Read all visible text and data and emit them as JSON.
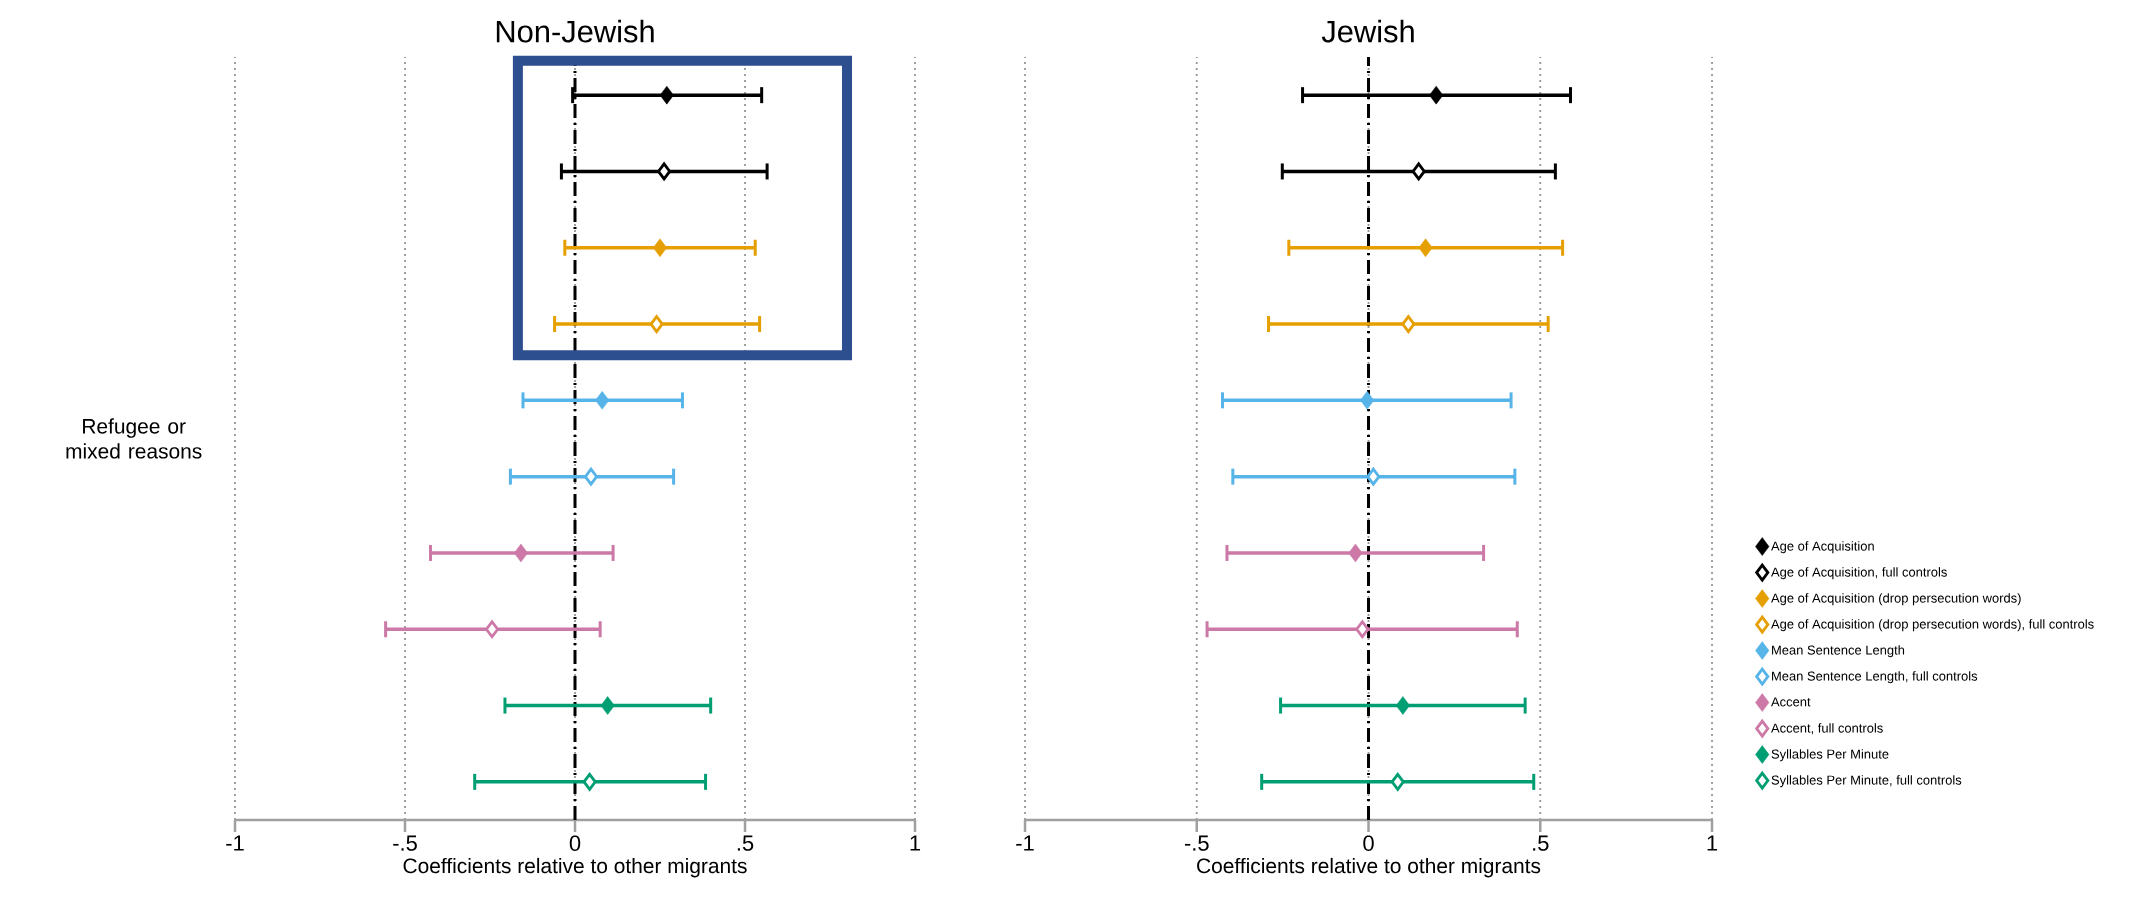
{
  "chart_data": [
    {
      "type": "scatter",
      "orientation": "horizontal",
      "title": "Non-Jewish",
      "xlabel": "Coefficients relative to other migrants",
      "ylabel": "Refugee or mixed reasons",
      "categories": [
        null,
        null,
        null,
        null,
        null,
        null,
        null,
        null,
        null,
        null
      ],
      "xlim": [
        -1,
        1
      ],
      "xticks": [
        {
          "value": -1,
          "label": "-1"
        },
        {
          "value": -0.5,
          "label": "-.5"
        },
        0,
        {
          "value": 0.5,
          "label": ".5"
        },
        1
      ],
      "grid": "x",
      "legend": false,
      "marker": "diamond",
      "ref_lines": [
        {
          "axis": "x",
          "value": 0,
          "line_style": "dashed",
          "color": "#000000"
        }
      ],
      "series": [
        {
          "color": "#000000",
          "values": [
            0.27,
            null,
            null,
            null,
            null,
            null,
            null,
            null,
            null,
            null
          ],
          "errors": [
            [
              -0.007,
              0.549
            ],
            null,
            null,
            null,
            null,
            null,
            null,
            null,
            null,
            null
          ]
        },
        {
          "color": "#000000",
          "values": [
            null,
            0.262,
            null,
            null,
            null,
            null,
            null,
            null,
            null,
            null
          ],
          "errors": [
            null,
            [
              -0.04,
              0.565
            ],
            null,
            null,
            null,
            null,
            null,
            null,
            null,
            null
          ]
        },
        {
          "color": "#e69f00",
          "values": [
            null,
            null,
            0.25,
            null,
            null,
            null,
            null,
            null,
            null,
            null
          ],
          "errors": [
            null,
            null,
            [
              -0.03,
              0.53
            ],
            null,
            null,
            null,
            null,
            null,
            null,
            null
          ]
        },
        {
          "color": "#e69f00",
          "values": [
            null,
            null,
            null,
            0.24,
            null,
            null,
            null,
            null,
            null,
            null
          ],
          "errors": [
            null,
            null,
            null,
            [
              -0.06,
              0.543
            ],
            null,
            null,
            null,
            null,
            null,
            null
          ]
        },
        {
          "color": "#56b4e9",
          "values": [
            null,
            null,
            null,
            null,
            0.08,
            null,
            null,
            null,
            null,
            null
          ],
          "errors": [
            null,
            null,
            null,
            null,
            [
              -0.153,
              0.316
            ],
            null,
            null,
            null,
            null,
            null
          ]
        },
        {
          "color": "#56b4e9",
          "values": [
            null,
            null,
            null,
            null,
            null,
            0.047,
            null,
            null,
            null,
            null
          ],
          "errors": [
            null,
            null,
            null,
            null,
            null,
            [
              -0.19,
              0.29
            ],
            null,
            null,
            null,
            null
          ]
        },
        {
          "color": "#cc79a7",
          "values": [
            null,
            null,
            null,
            null,
            null,
            null,
            -0.159,
            null,
            null,
            null
          ],
          "errors": [
            null,
            null,
            null,
            null,
            null,
            null,
            [
              -0.425,
              0.112
            ],
            null,
            null,
            null
          ]
        },
        {
          "color": "#cc79a7",
          "values": [
            null,
            null,
            null,
            null,
            null,
            null,
            null,
            -0.244,
            null,
            null
          ],
          "errors": [
            null,
            null,
            null,
            null,
            null,
            null,
            null,
            [
              -0.557,
              0.074
            ],
            null,
            null
          ]
        },
        {
          "color": "#009e73",
          "values": [
            null,
            null,
            null,
            null,
            null,
            null,
            null,
            null,
            0.096,
            null
          ],
          "errors": [
            null,
            null,
            null,
            null,
            null,
            null,
            null,
            null,
            [
              -0.206,
              0.399
            ],
            null
          ]
        },
        {
          "color": "#009e73",
          "values": [
            null,
            null,
            null,
            null,
            null,
            null,
            null,
            null,
            null,
            0.043
          ],
          "errors": [
            null,
            null,
            null,
            null,
            null,
            null,
            null,
            null,
            null,
            [
              -0.295,
              0.384
            ]
          ]
        }
      ]
    },
    {
      "type": "scatter",
      "orientation": "horizontal",
      "title": "Jewish",
      "xlabel": "Coefficients relative to other migrants",
      "tick_labels": "x",
      "categories": [
        null,
        null,
        null,
        null,
        null,
        null,
        null,
        null,
        null,
        null
      ],
      "xlim": [
        -1,
        1
      ],
      "xticks": [
        {
          "value": -1,
          "label": "-1"
        },
        {
          "value": -0.5,
          "label": "-.5"
        },
        0,
        {
          "value": 0.5,
          "label": ".5"
        },
        1
      ],
      "grid": "x",
      "legend": "right",
      "marker": "diamond",
      "ref_lines": [
        {
          "axis": "x",
          "value": 0,
          "line_style": "dashed",
          "color": "#000000"
        }
      ],
      "series": [
        {
          "name": "Age of Acquisition",
          "color": "#000000",
          "values": [
            0.197,
            null,
            null,
            null,
            null,
            null,
            null,
            null,
            null,
            null
          ],
          "errors": [
            [
              -0.192,
              0.588
            ],
            null,
            null,
            null,
            null,
            null,
            null,
            null,
            null,
            null
          ]
        },
        {
          "name": "Age of Acquisition, full controls",
          "color": "#000000",
          "values": [
            null,
            0.146,
            null,
            null,
            null,
            null,
            null,
            null,
            null,
            null
          ],
          "errors": [
            null,
            [
              -0.251,
              0.544
            ],
            null,
            null,
            null,
            null,
            null,
            null,
            null,
            null
          ]
        },
        {
          "name": "Age of Acquisition (drop persecution words)",
          "color": "#e69f00",
          "values": [
            null,
            null,
            0.166,
            null,
            null,
            null,
            null,
            null,
            null,
            null
          ],
          "errors": [
            null,
            null,
            [
              -0.232,
              0.565
            ],
            null,
            null,
            null,
            null,
            null,
            null,
            null
          ]
        },
        {
          "name": "Age of Acquisition (drop persecution words), full controls",
          "color": "#e69f00",
          "values": [
            null,
            null,
            null,
            0.116,
            null,
            null,
            null,
            null,
            null,
            null
          ],
          "errors": [
            null,
            null,
            null,
            [
              -0.291,
              0.523
            ],
            null,
            null,
            null,
            null,
            null,
            null
          ]
        },
        {
          "name": "Mean Sentence Length",
          "color": "#56b4e9",
          "values": [
            null,
            null,
            null,
            null,
            -0.004,
            null,
            null,
            null,
            null,
            null
          ],
          "errors": [
            null,
            null,
            null,
            null,
            [
              -0.425,
              0.415
            ],
            null,
            null,
            null,
            null,
            null
          ]
        },
        {
          "name": "Mean Sentence Length, full controls",
          "color": "#56b4e9",
          "values": [
            null,
            null,
            null,
            null,
            null,
            0.014,
            null,
            null,
            null,
            null
          ],
          "errors": [
            null,
            null,
            null,
            null,
            null,
            [
              -0.395,
              0.426
            ],
            null,
            null,
            null,
            null
          ]
        },
        {
          "name": "Accent",
          "color": "#cc79a7",
          "values": [
            null,
            null,
            null,
            null,
            null,
            null,
            -0.038,
            null,
            null,
            null
          ],
          "errors": [
            null,
            null,
            null,
            null,
            null,
            null,
            [
              -0.412,
              0.335
            ],
            null,
            null,
            null
          ]
        },
        {
          "name": "Accent, full controls",
          "color": "#cc79a7",
          "values": [
            null,
            null,
            null,
            null,
            null,
            null,
            null,
            -0.018,
            null,
            null
          ],
          "errors": [
            null,
            null,
            null,
            null,
            null,
            null,
            null,
            [
              -0.47,
              0.433
            ],
            null,
            null
          ]
        },
        {
          "name": "Syllables Per Minute",
          "color": "#009e73",
          "values": [
            null,
            null,
            null,
            null,
            null,
            null,
            null,
            null,
            0.1,
            null
          ],
          "errors": [
            null,
            null,
            null,
            null,
            null,
            null,
            null,
            null,
            [
              -0.256,
              0.456
            ],
            null
          ]
        },
        {
          "name": "Syllables Per Minute, full controls",
          "color": "#009e73",
          "values": [
            null,
            null,
            null,
            null,
            null,
            null,
            null,
            null,
            null,
            0.085
          ],
          "errors": [
            null,
            null,
            null,
            null,
            null,
            null,
            null,
            null,
            null,
            [
              -0.311,
              0.481
            ]
          ]
        }
      ]
    }
  ]
}
